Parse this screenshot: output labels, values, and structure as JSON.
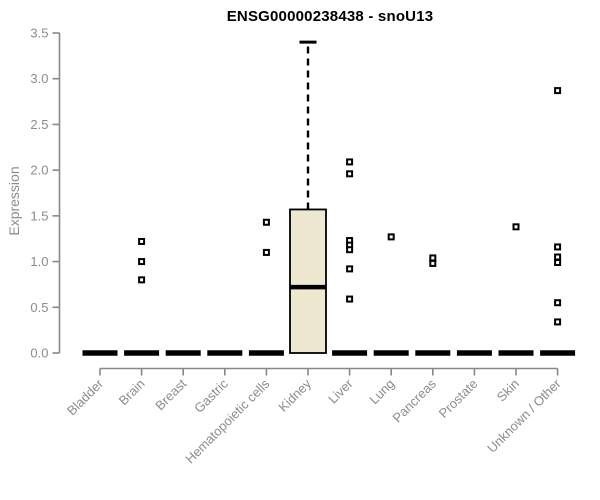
{
  "chart_data": {
    "type": "boxplot",
    "title": "ENSG00000238438 - snoU13",
    "ylabel": "Expression",
    "xlabel": "",
    "ylim": [
      0,
      3.5
    ],
    "yticks": [
      0.0,
      0.5,
      1.0,
      1.5,
      2.0,
      2.5,
      3.0,
      3.5
    ],
    "grid": false,
    "legend": "none",
    "categories": [
      "Bladder",
      "Brain",
      "Breast",
      "Gastric",
      "Hematopoietic cells",
      "Kidney",
      "Liver",
      "Lung",
      "Pancreas",
      "Prostate",
      "Skin",
      "Unknown / Other"
    ],
    "series": [
      {
        "category": "Bladder",
        "low": 0,
        "q1": 0,
        "median": 0,
        "q3": 0,
        "high": 0,
        "outliers": []
      },
      {
        "category": "Brain",
        "low": 0,
        "q1": 0,
        "median": 0,
        "q3": 0,
        "high": 0,
        "outliers": [
          1.22,
          1.0,
          0.8
        ]
      },
      {
        "category": "Breast",
        "low": 0,
        "q1": 0,
        "median": 0,
        "q3": 0,
        "high": 0,
        "outliers": []
      },
      {
        "category": "Gastric",
        "low": 0,
        "q1": 0,
        "median": 0,
        "q3": 0,
        "high": 0,
        "outliers": []
      },
      {
        "category": "Hematopoietic cells",
        "low": 0,
        "q1": 0,
        "median": 0,
        "q3": 0,
        "high": 0,
        "outliers": [
          1.43,
          1.1
        ]
      },
      {
        "category": "Kidney",
        "low": 0,
        "q1": 0,
        "median": 0.72,
        "q3": 1.57,
        "high": 3.4,
        "outliers": []
      },
      {
        "category": "Liver",
        "low": 0,
        "q1": 0,
        "median": 0,
        "q3": 0,
        "high": 0,
        "outliers": [
          2.09,
          1.96,
          1.23,
          1.18,
          1.13,
          0.92,
          0.59
        ]
      },
      {
        "category": "Lung",
        "low": 0,
        "q1": 0,
        "median": 0,
        "q3": 0,
        "high": 0,
        "outliers": [
          1.27
        ]
      },
      {
        "category": "Pancreas",
        "low": 0,
        "q1": 0,
        "median": 0,
        "q3": 0,
        "high": 0,
        "outliers": [
          1.04,
          0.98
        ]
      },
      {
        "category": "Prostate",
        "low": 0,
        "q1": 0,
        "median": 0,
        "q3": 0,
        "high": 0,
        "outliers": []
      },
      {
        "category": "Skin",
        "low": 0,
        "q1": 0,
        "median": 0,
        "q3": 0,
        "high": 0,
        "outliers": [
          1.38
        ]
      },
      {
        "category": "Unknown / Other",
        "low": 0,
        "q1": 0,
        "median": 0,
        "q3": 0,
        "high": 0,
        "outliers": [
          2.87,
          1.16,
          1.05,
          0.99,
          0.55,
          0.34
        ]
      }
    ],
    "colors": {
      "box_fill": "#ede8cf",
      "box_stroke": "#000000",
      "median": "#000000",
      "whisker": "#000000",
      "outlier_stroke": "#000000",
      "outlier_fill": "#ffffff",
      "axis_line": "#888888",
      "tick_text": "#8c8c8c",
      "title_text": "#000000"
    }
  }
}
